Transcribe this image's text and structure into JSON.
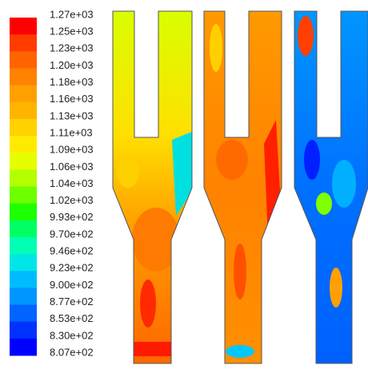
{
  "colorbar": {
    "labels": [
      "1.27e+03",
      "1.25e+03",
      "1.23e+03",
      "1.20e+03",
      "1.18e+03",
      "1.16e+03",
      "1.13e+03",
      "1.11e+03",
      "1.09e+03",
      "1.06e+03",
      "1.04e+03",
      "1.02e+03",
      "9.93e+02",
      "9.70e+02",
      "9.46e+02",
      "9.23e+02",
      "9.00e+02",
      "8.77e+02",
      "8.53e+02",
      "8.30e+02",
      "8.07e+02"
    ],
    "colors": [
      "#ff0000",
      "#ff3c00",
      "#ff6400",
      "#ff8200",
      "#ffa000",
      "#ffb400",
      "#ffd200",
      "#ffeb00",
      "#e6ff00",
      "#b4ff00",
      "#6eff00",
      "#1eff00",
      "#00ff64",
      "#00ffb4",
      "#00e6e6",
      "#00bcff",
      "#0096ff",
      "#0064ff",
      "#0032ff",
      "#0000ff"
    ]
  }
}
